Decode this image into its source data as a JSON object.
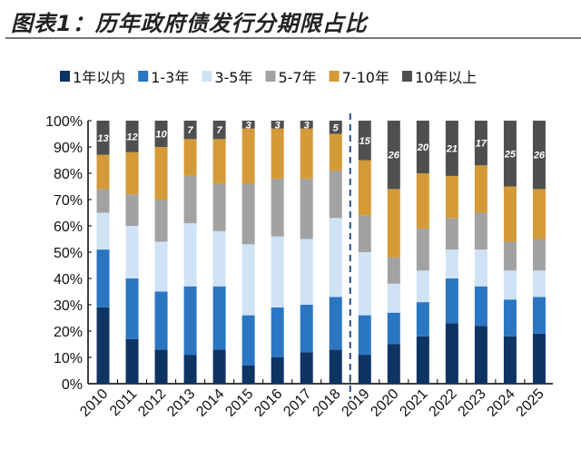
{
  "title": "图表1：历年政府债发行分期限占比",
  "chart_data": {
    "type": "bar",
    "stacked": true,
    "categories": [
      "2010",
      "2011",
      "2012",
      "2013",
      "2014",
      "2015",
      "2016",
      "2017",
      "2018",
      "2019",
      "2020",
      "2021",
      "2022",
      "2023",
      "2024",
      "2025"
    ],
    "ylim": [
      0,
      100
    ],
    "yticks": [
      "0%",
      "10%",
      "20%",
      "30%",
      "40%",
      "50%",
      "60%",
      "70%",
      "80%",
      "90%",
      "100%"
    ],
    "legend_position": "top",
    "grid": false,
    "divider_between": [
      "2018",
      "2019"
    ],
    "series": [
      {
        "name": "1年以内",
        "color": "#0e3463",
        "values": [
          29,
          17,
          13,
          11,
          13,
          7,
          10,
          12,
          13,
          11,
          15,
          18,
          23,
          22,
          18,
          19
        ]
      },
      {
        "name": "1-3年",
        "color": "#2a76c2",
        "values": [
          22,
          23,
          22,
          26,
          24,
          19,
          19,
          18,
          20,
          15,
          12,
          13,
          17,
          15,
          14,
          14
        ]
      },
      {
        "name": "3-5年",
        "color": "#cfe3f5",
        "values": [
          14,
          20,
          19,
          24,
          21,
          27,
          27,
          25,
          30,
          24,
          11,
          12,
          11,
          14,
          11,
          10
        ]
      },
      {
        "name": "5-7年",
        "color": "#a2a2a2",
        "values": [
          9,
          12,
          16,
          18,
          18,
          23,
          22,
          23,
          18,
          14,
          10,
          16,
          12,
          14,
          11,
          12
        ]
      },
      {
        "name": "7-10年",
        "color": "#d39a37",
        "values": [
          13,
          16,
          20,
          14,
          17,
          21,
          19,
          19,
          14,
          21,
          26,
          21,
          16,
          18,
          21,
          19
        ]
      },
      {
        "name": "10年以上",
        "color": "#4f4f4f",
        "values": [
          13,
          12,
          10,
          7,
          7,
          3,
          3,
          3,
          5,
          15,
          26,
          20,
          21,
          17,
          25,
          26
        ]
      }
    ],
    "data_labels_series": "10年以上"
  }
}
